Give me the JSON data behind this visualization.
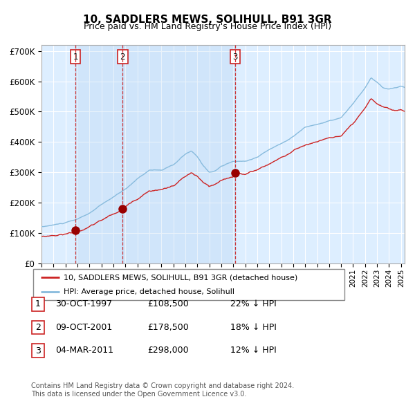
{
  "title": "10, SADDLERS MEWS, SOLIHULL, B91 3GR",
  "subtitle": "Price paid vs. HM Land Registry's House Price Index (HPI)",
  "background_color": "#ffffff",
  "plot_bg_color": "#ddeeff",
  "grid_color": "#ffffff",
  "hpi_color": "#88bbdd",
  "price_color": "#cc2222",
  "sale_marker_color": "#990000",
  "vline_color": "#cc2222",
  "ylim": [
    0,
    720000
  ],
  "yticks": [
    0,
    100000,
    200000,
    300000,
    400000,
    500000,
    600000,
    700000
  ],
  "ytick_labels": [
    "£0",
    "£100K",
    "£200K",
    "£300K",
    "£400K",
    "£500K",
    "£600K",
    "£700K"
  ],
  "sales": [
    {
      "date_num": 1997.83,
      "price": 108500,
      "label": "1"
    },
    {
      "date_num": 2001.77,
      "price": 178500,
      "label": "2"
    },
    {
      "date_num": 2011.17,
      "price": 298000,
      "label": "3"
    }
  ],
  "table_rows": [
    {
      "num": "1",
      "date": "30-OCT-1997",
      "price": "£108,500",
      "hpi": "22% ↓ HPI"
    },
    {
      "num": "2",
      "date": "09-OCT-2001",
      "price": "£178,500",
      "hpi": "18% ↓ HPI"
    },
    {
      "num": "3",
      "date": "04-MAR-2011",
      "price": "£298,000",
      "hpi": "12% ↓ HPI"
    }
  ],
  "legend_entries": [
    {
      "label": "10, SADDLERS MEWS, SOLIHULL, B91 3GR (detached house)",
      "color": "#cc2222"
    },
    {
      "label": "HPI: Average price, detached house, Solihull",
      "color": "#88bbdd"
    }
  ],
  "footer": "Contains HM Land Registry data © Crown copyright and database right 2024.\nThis data is licensed under the Open Government Licence v3.0.",
  "xstart": 1995.0,
  "xend": 2025.3
}
